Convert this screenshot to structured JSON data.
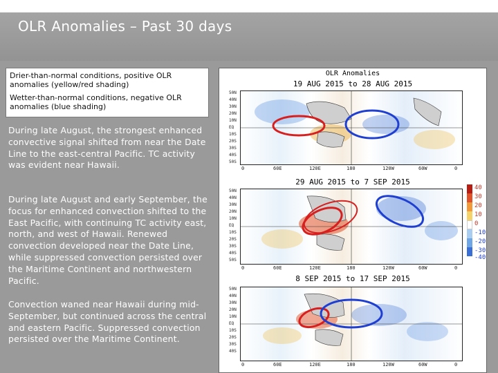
{
  "title": "OLR Anomalies – Past 30 days",
  "legend": {
    "drier": "Drier-than-normal conditions, positive OLR anomalies (yellow/red shading)",
    "wetter": "Wetter-than-normal conditions, negative OLR anomalies (blue shading)"
  },
  "paragraphs": [
    "During late August, the strongest enhanced convective signal shifted from near the Date Line to the east-central Pacific. TC activity was evident near Hawaii.",
    "During late August and early September, the focus for enhanced convection shifted to the East Pacific, with continuing TC activity east, north, and west of Hawaii. Renewed convection developed near the Date Line, while suppressed convection persisted over the Maritime Continent and northwestern Pacific.",
    "Convection waned near Hawaii during mid-September, but continued across the central and eastern Pacific. Suppressed convection persisted over the Maritime Continent."
  ],
  "figure": {
    "header": "OLR Anomalies",
    "maps": [
      {
        "period": "19 AUG 2015 to 28 AUG 2015"
      },
      {
        "period": "29 AUG 2015 to 7 SEP 2015"
      },
      {
        "period": "8 SEP 2015 to 17 SEP 2015"
      }
    ],
    "latitudes": [
      "50N",
      "40N",
      "30N",
      "20N",
      "10N",
      "EQ",
      "10S",
      "20S",
      "30S",
      "40S",
      "50S"
    ],
    "longitudes_top": [
      "0",
      "60E",
      "120E",
      "180",
      "120W",
      "60W",
      "0"
    ],
    "longitudes_bottom": [
      "0",
      "60E",
      "120E",
      "180",
      "120W",
      "60W",
      "0"
    ],
    "colorbar": [
      "40",
      "30",
      "20",
      "10",
      "0",
      "-10",
      "-20",
      "-30",
      "-40"
    ],
    "colors": {
      "suppressed_circle": "#d62020",
      "enhanced_circle": "#1f3fd0",
      "positive": "#e0522a",
      "negative": "#3a6fd6"
    }
  }
}
